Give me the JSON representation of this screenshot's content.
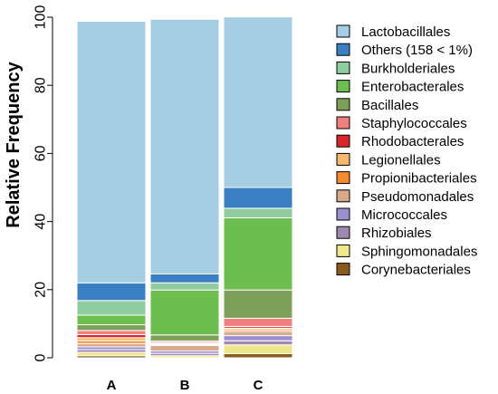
{
  "chart_data": {
    "type": "bar",
    "stacked": true,
    "categories": [
      "A",
      "B",
      "C"
    ],
    "ylabel": "Relative Frequency",
    "xlabel": "",
    "ylim": [
      0,
      100
    ],
    "yticks": [
      0,
      20,
      40,
      60,
      80,
      100
    ],
    "legend_position": "right",
    "series": [
      {
        "name": "Corynebacteriales",
        "color": "#8B5A1E",
        "values": [
          0.6,
          0.0,
          1.2
        ]
      },
      {
        "name": "Sphingomonadales",
        "color": "#F0E68C",
        "values": [
          1.0,
          0.6,
          2.6
        ]
      },
      {
        "name": "Rhizobiales",
        "color": "#9E8AAE",
        "values": [
          0.8,
          0.7,
          1.2
        ]
      },
      {
        "name": "Micrococcales",
        "color": "#9B8FD0",
        "values": [
          0.8,
          0.7,
          1.5
        ]
      },
      {
        "name": "Pseudomonadales",
        "color": "#D9A98C",
        "values": [
          1.0,
          1.6,
          1.2
        ]
      },
      {
        "name": "Propionibacteriales",
        "color": "#F28A2E",
        "values": [
          0.8,
          0.3,
          0.5
        ]
      },
      {
        "name": "Legionellales",
        "color": "#F5B870",
        "values": [
          0.9,
          0.3,
          0.5
        ]
      },
      {
        "name": "Rhodobacterales",
        "color": "#D9262C",
        "values": [
          0.9,
          0.3,
          0.5
        ]
      },
      {
        "name": "Staphylococcales",
        "color": "#F08080",
        "values": [
          1.2,
          0.4,
          2.4
        ]
      },
      {
        "name": "Bacillales",
        "color": "#7FA05A",
        "values": [
          1.7,
          1.8,
          8.3
        ]
      },
      {
        "name": "Enterobacterales",
        "color": "#6CBF4F",
        "values": [
          2.8,
          13.2,
          21.2
        ]
      },
      {
        "name": "Burkholderiales",
        "color": "#8FCC9F",
        "values": [
          4.3,
          2.1,
          2.8
        ]
      },
      {
        "name": "Others (158 < 1%)",
        "color": "#3A7FC1",
        "values": [
          5.2,
          2.6,
          6.1
        ]
      },
      {
        "name": "Lactobacillales",
        "color": "#A6CEE3",
        "values": [
          76.8,
          74.8,
          50.1
        ]
      }
    ]
  }
}
